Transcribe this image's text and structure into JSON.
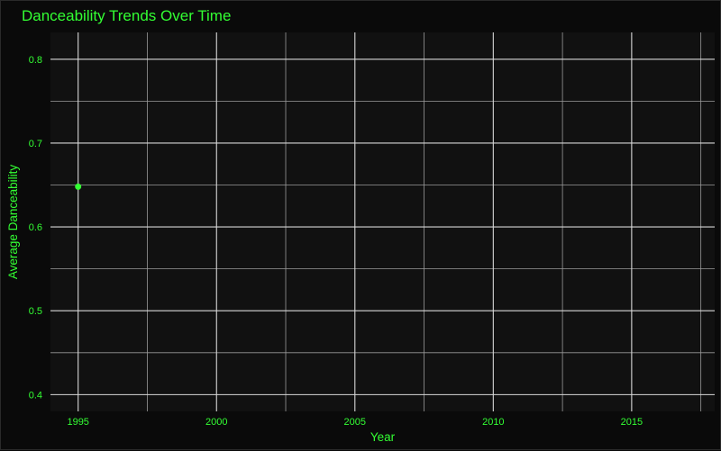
{
  "colors": {
    "text": "#33ff33",
    "point": "#33ff33",
    "panel_bg": "#111111",
    "grid_major": "#d8d8d8",
    "grid_minor": "#9a9a9a"
  },
  "chart_data": {
    "type": "scatter",
    "title": "Danceability Trends Over Time",
    "xlabel": "Year",
    "ylabel": "Average Danceability",
    "xlim": [
      1994.0,
      2018.0
    ],
    "ylim": [
      0.38,
      0.832
    ],
    "xticks": [
      1995,
      2000,
      2005,
      2010,
      2015
    ],
    "xtick_labels": [
      "1995",
      "2000",
      "2005",
      "2010",
      "2015"
    ],
    "yticks": [
      0.4,
      0.5,
      0.6,
      0.7,
      0.8
    ],
    "ytick_labels": [
      "0.4",
      "0.5",
      "0.6",
      "0.7",
      "0.8"
    ],
    "grid": true,
    "legend": "none",
    "points": [
      {
        "x": 1995,
        "y": 0.648
      }
    ]
  }
}
